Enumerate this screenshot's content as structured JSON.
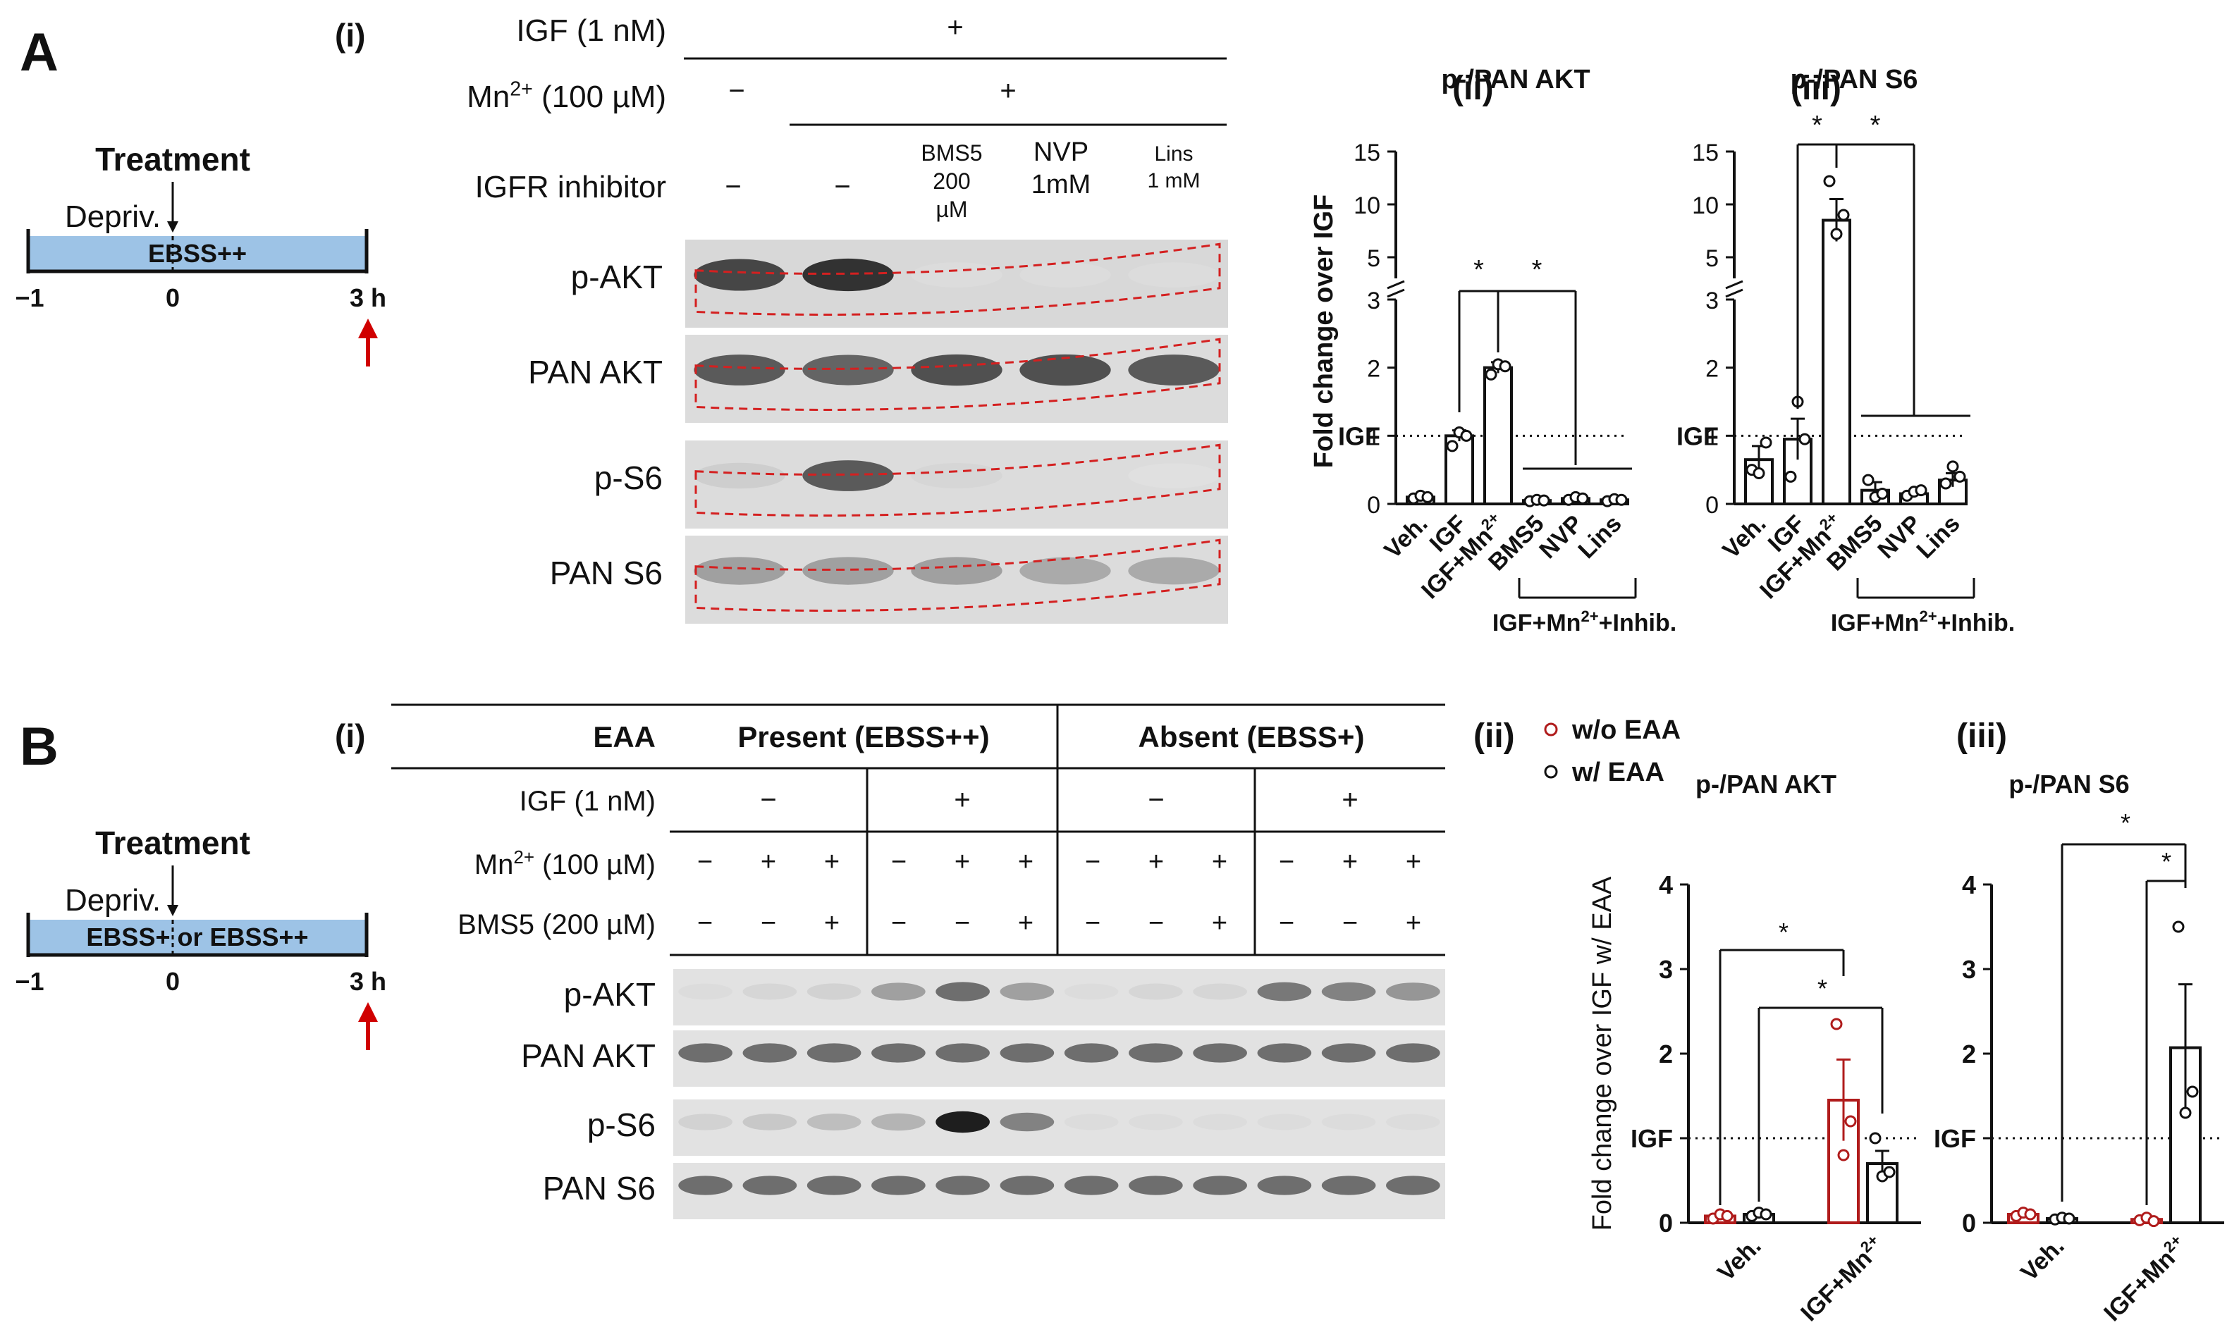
{
  "panelA": {
    "letter": "A",
    "timeline": {
      "treatment": "Treatment",
      "depriv": "Depriv.",
      "medium": "EBSS++",
      "ticks": [
        "−1",
        "0",
        "3 h"
      ]
    },
    "blot": {
      "sub": "(i)",
      "conditions": [
        {
          "label": "IGF (1 nM)",
          "marks": [
            "+"
          ]
        },
        {
          "label": "Mn",
          "sup": "2+",
          "unit": "(100 µM)",
          "marks": [
            "−",
            "+"
          ]
        },
        {
          "label": "IGFR inhibitor",
          "marks": [
            "−",
            "−",
            "BMS5|200|µM",
            "NVP|1mM",
            "Lins|1 mM"
          ]
        }
      ],
      "rows": [
        "p-AKT",
        "PAN AKT",
        "p-S6",
        "PAN S6"
      ],
      "row_intensity": [
        [
          0.8,
          0.9,
          0.05,
          0.05,
          0.05
        ],
        [
          0.7,
          0.65,
          0.75,
          0.75,
          0.7
        ],
        [
          0.12,
          0.7,
          0.08,
          0.05,
          0.03
        ],
        [
          0.35,
          0.35,
          0.35,
          0.3,
          0.3
        ]
      ]
    },
    "charts": [
      {
        "sub": "(ii)",
        "title": "p-/PAN AKT",
        "ylabel": "Fold change over IGF",
        "ref_label": "IGF",
        "yticks_low": [
          "0",
          "1",
          "2",
          "3"
        ],
        "yticks_high": [
          "5",
          "10",
          "15"
        ],
        "categories": [
          "Veh.",
          "IGF",
          "IGF+Mn",
          "BMS5",
          "NVP",
          "Lins"
        ],
        "values": [
          0.1,
          1.0,
          2.0,
          0.05,
          0.08,
          0.06
        ],
        "points": [
          [
            0.08,
            0.12,
            0.1
          ],
          [
            0.85,
            1.05,
            1.0
          ],
          [
            1.9,
            2.05,
            2.02
          ],
          [
            0.04,
            0.06,
            0.05
          ],
          [
            0.06,
            0.1,
            0.08
          ],
          [
            0.04,
            0.07,
            0.06
          ]
        ],
        "errors": [
          0.02,
          0.08,
          0.08,
          0.01,
          0.02,
          0.01
        ],
        "group_label": "IGF+Mn",
        "group_sup": "2+",
        "group_tail": "+Inhib.",
        "star": "*"
      },
      {
        "sub": "(iii)",
        "title": "p-/PAN S6",
        "ref_label": "IGF",
        "yticks_low": [
          "0",
          "1",
          "2",
          "3"
        ],
        "yticks_high": [
          "5",
          "10",
          "15"
        ],
        "categories": [
          "Veh.",
          "IGF",
          "IGF+Mn",
          "BMS5",
          "NVP",
          "Lins"
        ],
        "values": [
          0.65,
          0.95,
          8.5,
          0.2,
          0.15,
          0.35
        ],
        "points": [
          [
            0.5,
            0.45,
            0.9
          ],
          [
            0.4,
            1.5,
            0.95
          ],
          [
            12.2,
            7.2,
            9.0
          ],
          [
            0.35,
            0.1,
            0.15
          ],
          [
            0.12,
            0.18,
            0.2
          ],
          [
            0.3,
            0.55,
            0.4
          ]
        ],
        "errors": [
          0.2,
          0.3,
          2.0,
          0.12,
          0.03,
          0.1
        ],
        "group_label": "IGF+Mn",
        "group_sup": "2+",
        "group_tail": "+Inhib.",
        "star": "*"
      }
    ]
  },
  "panelB": {
    "letter": "B",
    "timeline": {
      "treatment": "Treatment",
      "depriv": "Depriv.",
      "medium": "EBSS+ or EBSS++",
      "ticks": [
        "−1",
        "0",
        "3 h"
      ]
    },
    "blot": {
      "sub": "(i)",
      "eaa": "EAA",
      "present": "Present (EBSS++)",
      "absent": "Absent (EBSS+)",
      "igf": "IGF (1 nM)",
      "igf_marks": [
        "−",
        "+",
        "−",
        "+"
      ],
      "mn": "Mn",
      "mn_sup": "2+",
      "mn_unit": "(100 µM)",
      "mn_marks": [
        "−",
        "+",
        "+",
        "−",
        "+",
        "+",
        "−",
        "+",
        "+",
        "−",
        "+",
        "+"
      ],
      "bms": "BMS5 (200 µM)",
      "bms_marks": [
        "−",
        "−",
        "+",
        "−",
        "−",
        "+",
        "−",
        "−",
        "+",
        "−",
        "−",
        "+"
      ],
      "rows": [
        "p-AKT",
        "PAN AKT",
        "p-S6",
        "PAN S6"
      ],
      "row_intensity": [
        [
          0.05,
          0.08,
          0.1,
          0.35,
          0.6,
          0.35,
          0.05,
          0.08,
          0.08,
          0.55,
          0.5,
          0.4
        ],
        [
          0.6,
          0.6,
          0.6,
          0.6,
          0.6,
          0.6,
          0.6,
          0.6,
          0.6,
          0.6,
          0.6,
          0.6
        ],
        [
          0.1,
          0.15,
          0.2,
          0.25,
          1.0,
          0.5,
          0.05,
          0.05,
          0.05,
          0.05,
          0.05,
          0.05
        ],
        [
          0.6,
          0.6,
          0.6,
          0.6,
          0.6,
          0.6,
          0.6,
          0.6,
          0.6,
          0.6,
          0.6,
          0.6
        ]
      ]
    },
    "legend": {
      "without": "w/o EAA",
      "with": "w/ EAA",
      "color_without": "#b01c1c",
      "color_with": "#111111"
    },
    "charts": [
      {
        "sub": "(ii)",
        "title": "p-/PAN AKT",
        "ylabel": "Fold change over IGF w/ EAA",
        "ref_label": "IGF",
        "yticks": [
          "0",
          "1",
          "2",
          "3",
          "4"
        ],
        "categories": [
          "Veh.",
          "IGF+Mn"
        ],
        "values_without": [
          0.08,
          1.45
        ],
        "values_with": [
          0.1,
          0.7
        ],
        "points_without": [
          [
            0.05,
            0.1,
            0.08
          ],
          [
            2.35,
            0.8,
            1.2
          ]
        ],
        "points_with": [
          [
            0.08,
            0.12,
            0.1
          ],
          [
            1.0,
            0.55,
            0.6
          ]
        ],
        "err_without": [
          0.02,
          0.48
        ],
        "err_with": [
          0.02,
          0.15
        ],
        "star": "*"
      },
      {
        "sub": "(iii)",
        "title": "p-/PAN S6",
        "ref_label": "IGF",
        "yticks": [
          "0",
          "1",
          "2",
          "3",
          "4"
        ],
        "categories": [
          "Veh.",
          "IGF+Mn"
        ],
        "values_without": [
          0.1,
          0.04
        ],
        "values_with": [
          0.05,
          2.07
        ],
        "points_without": [
          [
            0.08,
            0.12,
            0.1
          ],
          [
            0.03,
            0.06,
            0.02
          ]
        ],
        "points_with": [
          [
            0.04,
            0.06,
            0.05
          ],
          [
            3.5,
            1.3,
            1.55
          ]
        ],
        "err_without": [
          0.02,
          0.01
        ],
        "err_with": [
          0.01,
          0.75
        ],
        "star": "*"
      }
    ]
  },
  "chart_data": [
    {
      "type": "bar",
      "title": "p-/PAN AKT",
      "panel": "A(ii)",
      "categories": [
        "Veh.",
        "IGF",
        "IGF+Mn2+",
        "BMS5",
        "NVP",
        "Lins"
      ],
      "values": [
        0.1,
        1.0,
        2.0,
        0.05,
        0.08,
        0.06
      ],
      "ylabel": "Fold change over IGF",
      "ylim": [
        0,
        15
      ]
    },
    {
      "type": "bar",
      "title": "p-/PAN S6",
      "panel": "A(iii)",
      "categories": [
        "Veh.",
        "IGF",
        "IGF+Mn2+",
        "BMS5",
        "NVP",
        "Lins"
      ],
      "values": [
        0.65,
        0.95,
        8.5,
        0.2,
        0.15,
        0.35
      ],
      "ylim": [
        0,
        15
      ]
    },
    {
      "type": "bar",
      "title": "p-/PAN AKT",
      "panel": "B(ii)",
      "categories": [
        "Veh.",
        "IGF+Mn2+"
      ],
      "series": [
        {
          "name": "w/o EAA",
          "values": [
            0.08,
            1.45
          ]
        },
        {
          "name": "w/ EAA",
          "values": [
            0.1,
            0.7
          ]
        }
      ],
      "ylabel": "Fold change over IGF w/ EAA",
      "ylim": [
        0,
        4
      ]
    },
    {
      "type": "bar",
      "title": "p-/PAN S6",
      "panel": "B(iii)",
      "categories": [
        "Veh.",
        "IGF+Mn2+"
      ],
      "series": [
        {
          "name": "w/o EAA",
          "values": [
            0.1,
            0.04
          ]
        },
        {
          "name": "w/ EAA",
          "values": [
            0.05,
            2.07
          ]
        }
      ],
      "ylim": [
        0,
        4
      ]
    }
  ]
}
